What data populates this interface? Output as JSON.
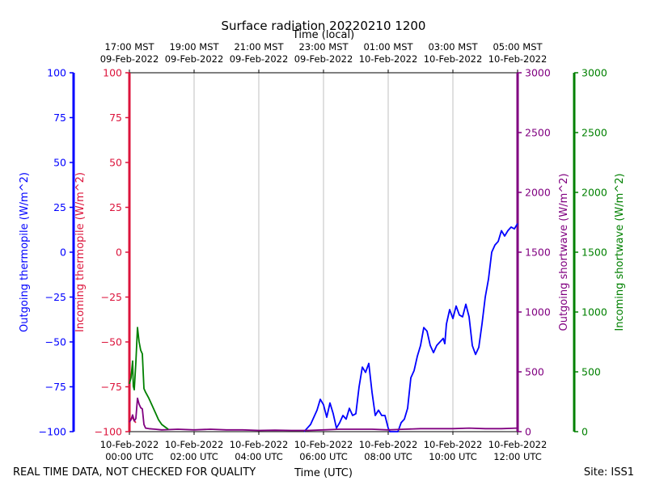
{
  "chart_data": {
    "type": "line",
    "title": "Surface radiation 20220210 1200",
    "top_axis_label": "Time (local)",
    "xlabel": "Time (UTC)",
    "footer_left": "REAL TIME DATA, NOT CHECKED FOR QUALITY",
    "footer_right": "Site: ISS1",
    "x_ticks_utc": [
      {
        "h": 0,
        "date": "10-Feb-2022",
        "time": "00:00 UTC"
      },
      {
        "h": 2,
        "date": "10-Feb-2022",
        "time": "02:00 UTC"
      },
      {
        "h": 4,
        "date": "10-Feb-2022",
        "time": "04:00 UTC"
      },
      {
        "h": 6,
        "date": "10-Feb-2022",
        "time": "06:00 UTC"
      },
      {
        "h": 8,
        "date": "10-Feb-2022",
        "time": "08:00 UTC"
      },
      {
        "h": 10,
        "date": "10-Feb-2022",
        "time": "10:00 UTC"
      },
      {
        "h": 12,
        "date": "10-Feb-2022",
        "time": "12:00 UTC"
      }
    ],
    "x_ticks_local": [
      {
        "h": 0,
        "time": "17:00 MST",
        "date": "09-Feb-2022"
      },
      {
        "h": 2,
        "time": "19:00 MST",
        "date": "09-Feb-2022"
      },
      {
        "h": 4,
        "time": "21:00 MST",
        "date": "09-Feb-2022"
      },
      {
        "h": 6,
        "time": "23:00 MST",
        "date": "09-Feb-2022"
      },
      {
        "h": 8,
        "time": "01:00 MST",
        "date": "10-Feb-2022"
      },
      {
        "h": 10,
        "time": "03:00 MST",
        "date": "10-Feb-2022"
      },
      {
        "h": 12,
        "time": "05:00 MST",
        "date": "10-Feb-2022"
      }
    ],
    "xlim": [
      0,
      12
    ],
    "grid": true,
    "axes": {
      "outgoing_thermopile": {
        "label": "Outgoing thermopile (W/m^2)",
        "color": "#0000ff",
        "ylim": [
          -100,
          100
        ],
        "ticks": [
          -100,
          -75,
          -50,
          -25,
          0,
          25,
          50,
          75,
          100
        ]
      },
      "incoming_thermopile": {
        "label": "Incoming thermopile (W/m^2)",
        "color": "#dc143c",
        "ylim": [
          -100,
          100
        ],
        "ticks": [
          -100,
          -75,
          -50,
          -25,
          0,
          25,
          50,
          75,
          100
        ]
      },
      "outgoing_shortwave": {
        "label": "Outgoing shortwave (W/m^2)",
        "color": "#800080",
        "ylim": [
          0,
          3000
        ],
        "ticks": [
          0,
          500,
          1000,
          1500,
          2000,
          2500,
          3000
        ]
      },
      "incoming_shortwave": {
        "label": "Incoming shortwave (W/m^2)",
        "color": "#008000",
        "ylim": [
          0,
          3000
        ],
        "ticks": [
          0,
          500,
          1000,
          1500,
          2000,
          2500,
          3000
        ]
      }
    },
    "series": [
      {
        "axis": "outgoing_thermopile",
        "color": "#0000ff",
        "x": [
          5.4,
          5.6,
          5.8,
          5.9,
          6.0,
          6.1,
          6.2,
          6.3,
          6.4,
          6.5,
          6.6,
          6.7,
          6.8,
          6.9,
          7.0,
          7.1,
          7.2,
          7.3,
          7.4,
          7.5,
          7.6,
          7.7,
          7.8,
          7.9,
          8.0,
          8.05,
          8.1,
          8.15,
          8.2,
          8.3,
          8.4,
          8.5,
          8.6,
          8.7,
          8.8,
          8.9,
          9.0,
          9.1,
          9.2,
          9.3,
          9.4,
          9.5,
          9.6,
          9.7,
          9.75,
          9.8,
          9.9,
          10.0,
          10.1,
          10.2,
          10.3,
          10.4,
          10.5,
          10.6,
          10.7,
          10.8,
          10.9,
          11.0,
          11.1,
          11.2,
          11.3,
          11.4,
          11.5,
          11.6,
          11.7,
          11.8,
          11.9,
          12.0
        ],
        "y": [
          -100,
          -96,
          -88,
          -82,
          -85,
          -92,
          -84,
          -90,
          -98,
          -95,
          -91,
          -93,
          -87,
          -91,
          -90,
          -75,
          -64,
          -67,
          -62,
          -78,
          -91,
          -88,
          -91,
          -91,
          -98,
          -100,
          -100,
          -100,
          -100,
          -100,
          -95,
          -93,
          -87,
          -70,
          -66,
          -58,
          -52,
          -42,
          -44,
          -52,
          -56,
          -52,
          -50,
          -48,
          -51,
          -40,
          -32,
          -37,
          -30,
          -35,
          -36,
          -29,
          -36,
          -52,
          -57,
          -53,
          -40,
          -25,
          -15,
          0,
          4,
          6,
          12,
          9,
          12,
          14,
          13,
          16
        ]
      },
      {
        "axis": "incoming_thermopile",
        "color": "#dc143c",
        "x": [
          0,
          0.05,
          0.1,
          0.15,
          0.2
        ],
        "y": [
          -94,
          -93,
          -92,
          -94,
          -95
        ]
      },
      {
        "axis": "outgoing_shortwave",
        "color": "#800080",
        "x": [
          0,
          0.05,
          0.1,
          0.15,
          0.2,
          0.25,
          0.3,
          0.35,
          0.4,
          0.45,
          0.5,
          0.6,
          0.8,
          1.0,
          1.5,
          2.0,
          2.5,
          3.0,
          3.5,
          4.0,
          4.5,
          5.0,
          5.5,
          6.0,
          6.5,
          7.0,
          7.5,
          8.0,
          8.5,
          9.0,
          9.5,
          10.0,
          10.5,
          11.0,
          11.5,
          12.0
        ],
        "y": [
          80,
          100,
          140,
          90,
          110,
          280,
          230,
          200,
          190,
          60,
          30,
          25,
          20,
          15,
          20,
          15,
          20,
          15,
          15,
          10,
          12,
          10,
          10,
          15,
          20,
          20,
          20,
          15,
          20,
          25,
          25,
          25,
          30,
          25,
          25,
          30
        ]
      },
      {
        "axis": "incoming_shortwave",
        "color": "#008000",
        "x": [
          0,
          0.05,
          0.1,
          0.12,
          0.15,
          0.2,
          0.25,
          0.3,
          0.35,
          0.4,
          0.45,
          0.5,
          0.6,
          0.7,
          0.8,
          0.9,
          1.0,
          1.1,
          1.2
        ],
        "y": [
          400,
          450,
          590,
          380,
          350,
          580,
          870,
          750,
          680,
          650,
          360,
          330,
          280,
          220,
          160,
          100,
          60,
          40,
          20
        ]
      }
    ]
  }
}
